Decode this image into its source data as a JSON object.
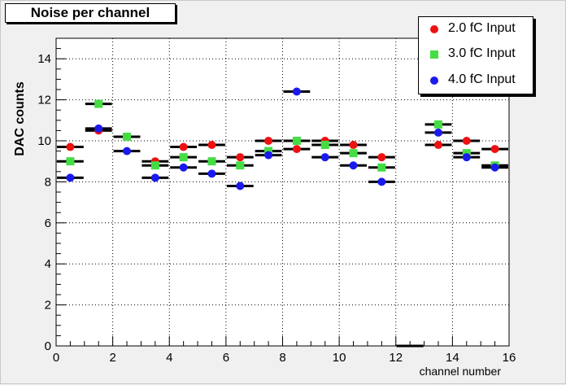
{
  "title": "Noise per channel",
  "colors": {
    "canvas": "#f0f0f0",
    "frame": "#ffffff",
    "grid": "#000000",
    "s1": "#ee1111",
    "s2": "#44dd44",
    "s3": "#1a1aee",
    "bar": "#000000"
  },
  "chart_data": {
    "type": "scatter",
    "title": "Noise per channel",
    "xlabel": "channel number",
    "ylabel": "DAC counts",
    "xlim": [
      0,
      16
    ],
    "ylim": [
      0,
      15
    ],
    "x_ticks": [
      0,
      2,
      4,
      6,
      8,
      10,
      12,
      14,
      16
    ],
    "y_ticks": [
      0,
      2,
      4,
      6,
      8,
      10,
      12,
      14
    ],
    "grid": true,
    "legend_position": "top-right",
    "bin_edges": [
      0,
      1,
      2,
      3,
      4,
      5,
      6,
      7,
      8,
      9,
      10,
      11,
      12,
      13,
      14,
      15,
      16
    ],
    "x": [
      0.5,
      1.5,
      2.5,
      3.5,
      4.5,
      5.5,
      6.5,
      7.5,
      8.5,
      9.5,
      10.5,
      11.5,
      12.5,
      13.5,
      14.5,
      15.5
    ],
    "series": [
      {
        "name": "2.0 fC Input",
        "marker": "circle",
        "color": "#ee1111",
        "values": [
          9.7,
          10.5,
          10.2,
          9.0,
          9.7,
          9.8,
          9.2,
          10.0,
          9.6,
          10.0,
          9.8,
          9.2,
          0.0,
          9.8,
          10.0,
          9.6
        ]
      },
      {
        "name": "3.0 fC Input",
        "marker": "square",
        "color": "#44dd44",
        "values": [
          9.0,
          11.8,
          10.2,
          8.8,
          9.2,
          9.0,
          8.8,
          9.5,
          10.0,
          9.8,
          9.4,
          8.7,
          0.0,
          10.8,
          9.4,
          8.8
        ]
      },
      {
        "name": "4.0 fC Input",
        "marker": "circle",
        "color": "#1a1aee",
        "values": [
          8.2,
          10.6,
          9.5,
          8.2,
          8.7,
          8.4,
          7.8,
          9.3,
          12.4,
          9.2,
          8.8,
          8.0,
          0.0,
          10.4,
          9.2,
          8.7
        ]
      }
    ]
  }
}
